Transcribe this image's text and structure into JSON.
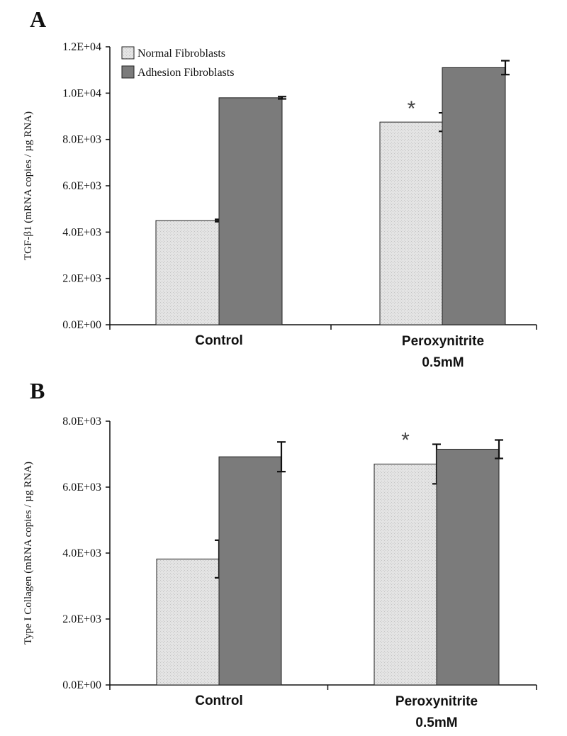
{
  "colors": {
    "normal": "#e4e4e4",
    "adhesion": "#7b7b7b",
    "axis": "#111111"
  },
  "chart_data": [
    {
      "type": "bar",
      "panel": "A",
      "ylabel": "TGF-β1 (mRNA copies / µg RNA)",
      "ylim": [
        0,
        12000
      ],
      "yticks": [
        0,
        2000,
        4000,
        6000,
        8000,
        10000,
        12000
      ],
      "ytick_labels": [
        "0.0E+00",
        "2.0E+03",
        "4.0E+03",
        "6.0E+03",
        "8.0E+03",
        "1.0E+04",
        "1.2E+04"
      ],
      "categories": [
        "Control",
        "Peroxynitrite\n0.5mM"
      ],
      "legend": [
        "Normal Fibroblasts",
        "Adhesion Fibroblasts"
      ],
      "series": [
        {
          "name": "Normal Fibroblasts",
          "values": [
            4500,
            8750
          ],
          "errors": [
            50,
            400
          ]
        },
        {
          "name": "Adhesion Fibroblasts",
          "values": [
            9800,
            11100
          ],
          "errors": [
            50,
            300
          ]
        }
      ],
      "annotations": [
        {
          "text": "*",
          "category": 1,
          "series": 0
        }
      ]
    },
    {
      "type": "bar",
      "panel": "B",
      "ylabel": "Type I Collagen (mRNA copies / µg RNA)",
      "ylim": [
        0,
        8000
      ],
      "yticks": [
        0,
        2000,
        4000,
        6000,
        8000
      ],
      "ytick_labels": [
        "0.0E+00",
        "2.0E+03",
        "4.0E+03",
        "6.0E+03",
        "8.0E+03"
      ],
      "categories": [
        "Control",
        "Peroxynitrite\n0.5mM"
      ],
      "series": [
        {
          "name": "Normal Fibroblasts",
          "values": [
            3820,
            6700
          ],
          "errors": [
            570,
            600
          ]
        },
        {
          "name": "Adhesion Fibroblasts",
          "values": [
            6920,
            7150
          ],
          "errors": [
            450,
            280
          ]
        }
      ],
      "annotations": [
        {
          "text": "*",
          "category": 1,
          "series": 0
        }
      ]
    }
  ]
}
